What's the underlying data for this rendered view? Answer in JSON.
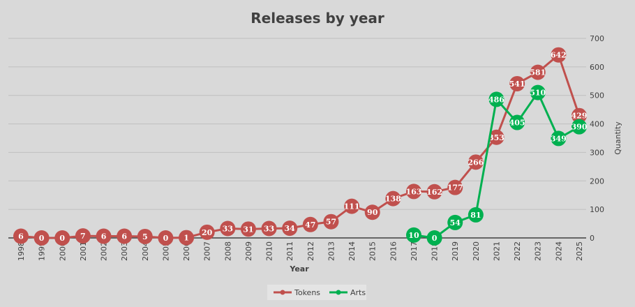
{
  "chart_data": {
    "type": "line",
    "title": "Releases by year",
    "xlabel": "Year",
    "ylabel": "Quantity",
    "ylim": [
      0,
      700
    ],
    "yticks": [
      0,
      100,
      200,
      300,
      400,
      500,
      600,
      700
    ],
    "y_axis_side": "right",
    "grid": true,
    "legend_position": "bottom",
    "x": [
      "1998",
      "1999",
      "2000",
      "2001",
      "2002",
      "2003",
      "2004",
      "2005",
      "2006",
      "2007",
      "2008",
      "2009",
      "2010",
      "2011",
      "2012",
      "2013",
      "2014",
      "2015",
      "2016",
      "2017",
      "2018",
      "2019",
      "2020",
      "2021",
      "2022",
      "2023",
      "2024",
      "2025"
    ],
    "series": [
      {
        "name": "Tokens",
        "color": "#c0504d",
        "values": [
          6,
          0,
          0,
          7,
          6,
          6,
          5,
          0,
          1,
          20,
          33,
          31,
          33,
          34,
          47,
          57,
          111,
          90,
          138,
          163,
          162,
          177,
          266,
          353,
          541,
          581,
          642,
          429
        ]
      },
      {
        "name": "Arts",
        "color": "#00b050",
        "values": [
          null,
          null,
          null,
          null,
          null,
          null,
          null,
          null,
          null,
          null,
          null,
          null,
          null,
          null,
          null,
          null,
          null,
          null,
          null,
          10,
          0,
          54,
          81,
          486,
          405,
          510,
          349,
          390
        ]
      }
    ]
  }
}
